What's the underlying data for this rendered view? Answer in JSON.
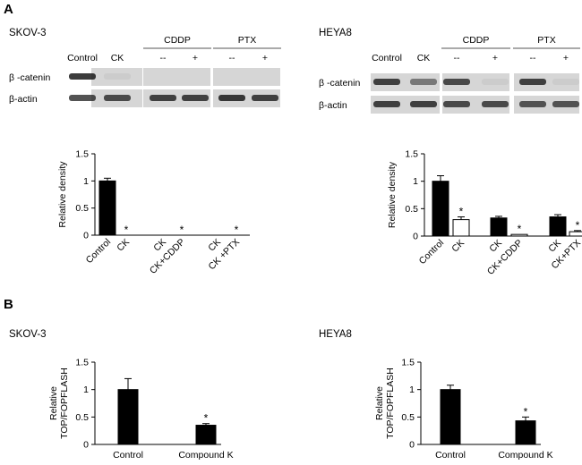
{
  "panels": {
    "A": "A",
    "B": "B"
  },
  "blots": [
    {
      "cell_line": "SKOV-3",
      "group_labels": [
        "CDDP",
        "PTX"
      ],
      "lane_labels": [
        "Control",
        "CK",
        "--",
        "+",
        "--",
        "+"
      ],
      "row_labels": [
        "β -catenin",
        "β-actin"
      ]
    },
    {
      "cell_line": "HEYA8",
      "group_labels": [
        "CDDP",
        "PTX"
      ],
      "lane_labels": [
        "Control",
        "CK",
        "--",
        "+",
        "--",
        "+"
      ],
      "row_labels": [
        "β -catenin",
        "β-actin"
      ]
    }
  ],
  "colors": {
    "filled_bar": "#000000",
    "open_bar": "#ffffff",
    "axis": "#000000"
  },
  "chart_data": [
    {
      "type": "bar",
      "panel": "A",
      "cell_line": "SKOV-3",
      "ylabel": "Relative density",
      "ylim": [
        0,
        1.5
      ],
      "yticks": [
        0,
        0.5,
        1,
        1.5
      ],
      "categories": [
        "Control",
        "CK",
        "CK",
        "CK+CDDP",
        "CK",
        "CK +PTX"
      ],
      "groups": [
        {
          "bars": [
            {
              "value": 1.0,
              "error": 0.05,
              "fill": "filled",
              "star": false
            },
            {
              "value": 0.0,
              "error": 0,
              "fill": "open",
              "star": true
            }
          ]
        },
        {
          "bars": [
            {
              "value": 0.0,
              "error": 0,
              "fill": "filled",
              "star": false
            },
            {
              "value": 0.0,
              "error": 0,
              "fill": "open",
              "star": true
            }
          ]
        },
        {
          "bars": [
            {
              "value": 0.0,
              "error": 0,
              "fill": "filled",
              "star": false
            },
            {
              "value": 0.0,
              "error": 0,
              "fill": "open",
              "star": true
            }
          ]
        }
      ],
      "star_label": "*"
    },
    {
      "type": "bar",
      "panel": "A",
      "cell_line": "HEYA8",
      "ylabel": "Relative density",
      "ylim": [
        0,
        1.5
      ],
      "yticks": [
        0,
        0.5,
        1,
        1.5
      ],
      "categories": [
        "Control",
        "CK",
        "CK",
        "CK+CDDP",
        "CK",
        "CK+PTX"
      ],
      "groups": [
        {
          "bars": [
            {
              "value": 1.0,
              "error": 0.1,
              "fill": "filled",
              "star": false
            },
            {
              "value": 0.3,
              "error": 0.05,
              "fill": "open",
              "star": true
            }
          ]
        },
        {
          "bars": [
            {
              "value": 0.33,
              "error": 0.03,
              "fill": "filled",
              "star": false
            },
            {
              "value": 0.03,
              "error": 0,
              "fill": "open",
              "star": true
            }
          ]
        },
        {
          "bars": [
            {
              "value": 0.35,
              "error": 0.04,
              "fill": "filled",
              "star": false
            },
            {
              "value": 0.08,
              "error": 0.02,
              "fill": "open",
              "star": true
            }
          ]
        }
      ],
      "star_label": "*"
    },
    {
      "type": "bar",
      "panel": "B",
      "cell_line": "SKOV-3",
      "ylabel": "Relative TOP/FOPFLASH",
      "ylim": [
        0,
        1.5
      ],
      "yticks": [
        0,
        0.5,
        1,
        1.5
      ],
      "categories": [
        "Control",
        "Compound K"
      ],
      "values": [
        1.0,
        0.35
      ],
      "errors": [
        0.2,
        0.03
      ],
      "stars": [
        false,
        true
      ],
      "star_label": "*"
    },
    {
      "type": "bar",
      "panel": "B",
      "cell_line": "HEYA8",
      "ylabel": "Relative TOP/FOPFLASH",
      "ylim": [
        0,
        1.5
      ],
      "yticks": [
        0,
        0.5,
        1,
        1.5
      ],
      "categories": [
        "Control",
        "Compound K"
      ],
      "values": [
        1.0,
        0.43
      ],
      "errors": [
        0.08,
        0.07
      ],
      "stars": [
        false,
        true
      ],
      "star_label": "*"
    }
  ]
}
